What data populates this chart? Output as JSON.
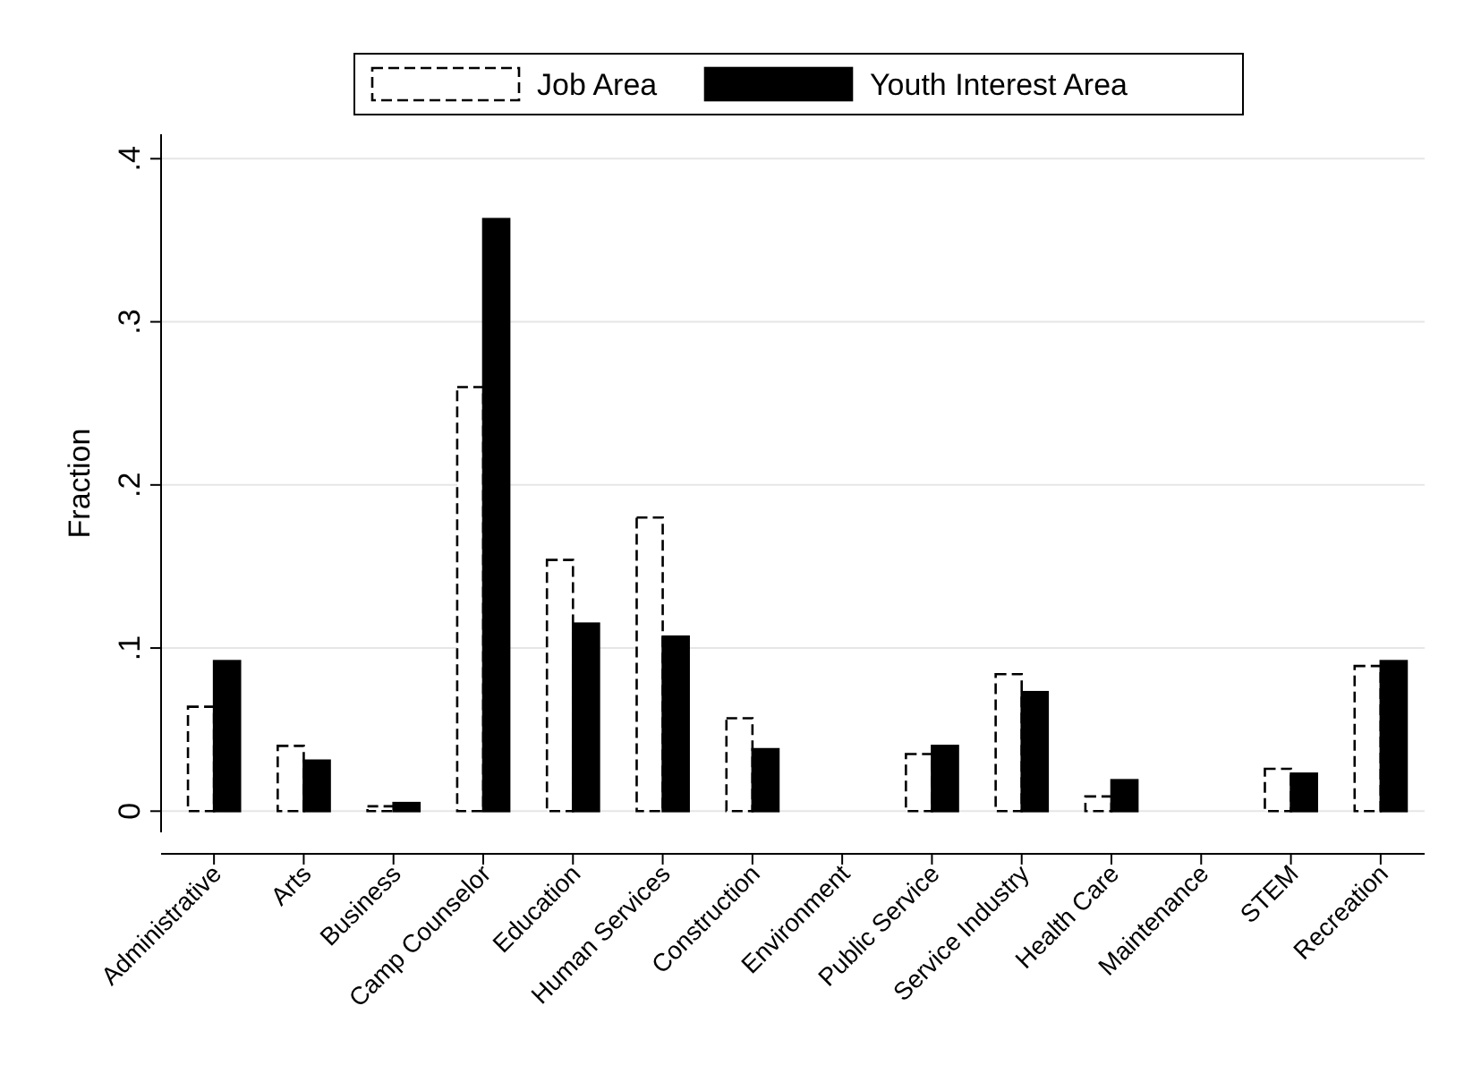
{
  "chart_data": {
    "type": "bar",
    "ylabel": "Fraction",
    "categories": [
      "Administrative",
      "Arts",
      "Business",
      "Camp Counselor",
      "Education",
      "Human Services",
      "Construction",
      "Environment",
      "Public Service",
      "Service Industry",
      "Health Care",
      "Maintenance",
      "STEM",
      "Recreation"
    ],
    "series": [
      {
        "name": "Job Area",
        "color": "#ffffff",
        "values": [
          0.064,
          0.04,
          0.003,
          0.26,
          0.154,
          0.18,
          0.057,
          0,
          0.035,
          0.084,
          0.009,
          0,
          0.026,
          0.089
        ]
      },
      {
        "name": "Youth Interest Area",
        "color": "#000000",
        "values": [
          0.092,
          0.031,
          0.005,
          0.363,
          0.115,
          0.107,
          0.038,
          0,
          0.04,
          0.073,
          0.019,
          0,
          0.023,
          0.092
        ]
      }
    ],
    "ylim": [
      -0.013,
      0.415
    ],
    "yticks": [
      0,
      {
        "value": 0.1,
        "label": ".1"
      },
      {
        "value": 0.2,
        "label": ".2"
      },
      {
        "value": 0.3,
        "label": ".3"
      },
      {
        "value": 0.4,
        "label": ".4"
      }
    ],
    "grid": "y",
    "legend": "top"
  }
}
